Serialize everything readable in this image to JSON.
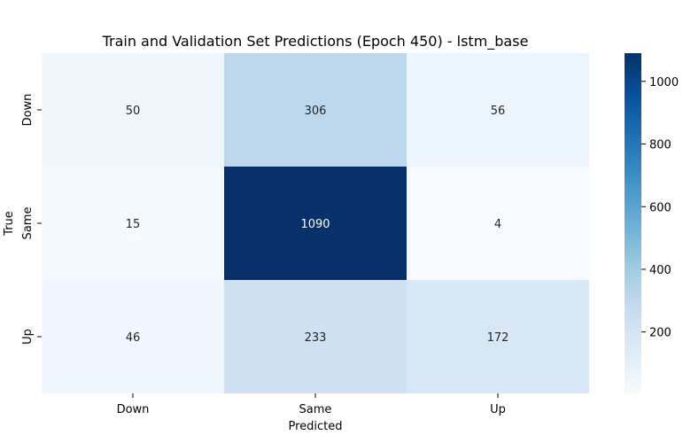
{
  "chart_data": {
    "type": "heatmap",
    "title": "Train and Validation Set Predictions (Epoch 450) - lstm_base",
    "xlabel": "Predicted",
    "ylabel": "True",
    "x_categories": [
      "Down",
      "Same",
      "Up"
    ],
    "y_categories": [
      "Down",
      "Same",
      "Up"
    ],
    "values": [
      [
        50,
        306,
        56
      ],
      [
        15,
        1090,
        4
      ],
      [
        46,
        233,
        172
      ]
    ],
    "colormap": "Blues",
    "colorbar": {
      "range": [
        4,
        1090
      ],
      "ticks": [
        200,
        400,
        600,
        800,
        1000
      ]
    }
  }
}
